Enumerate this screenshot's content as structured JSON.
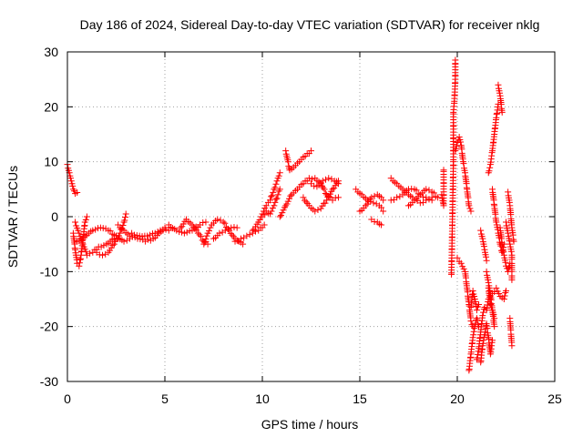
{
  "chart_data": {
    "type": "scatter",
    "title": "Day 186 of 2024, Sidereal Day-to-day VTEC variation (SDTVAR) for receiver nklg",
    "xlabel": "GPS time / hours",
    "ylabel": "SDTVAR / TECUs",
    "xlim": [
      0,
      25
    ],
    "ylim": [
      -30,
      30
    ],
    "xticks": [
      0,
      5,
      10,
      15,
      20,
      25
    ],
    "xtick_labels": [
      "0",
      "5",
      "10",
      "15",
      "20",
      "25"
    ],
    "yticks": [
      -30,
      -20,
      -10,
      0,
      10,
      20,
      30
    ],
    "ytick_labels": [
      "-30",
      "-20",
      "-10",
      "0",
      "10",
      "20",
      "30"
    ],
    "grid": true,
    "marker": "+",
    "color": "#ff0000",
    "series": [
      {
        "name": "SDTVAR",
        "segments": [
          [
            [
              0.0,
              9.5
            ],
            [
              0.1,
              8.0
            ],
            [
              0.2,
              6.5
            ],
            [
              0.3,
              5.0
            ],
            [
              0.4,
              4.2
            ],
            [
              0.5,
              4.4
            ]
          ],
          [
            [
              0.3,
              -3.0
            ],
            [
              0.4,
              -6.0
            ],
            [
              0.5,
              -8.5
            ],
            [
              0.6,
              -9.0
            ],
            [
              0.7,
              -7.0
            ],
            [
              0.8,
              -4.0
            ],
            [
              0.9,
              -1.0
            ],
            [
              1.0,
              0.0
            ]
          ],
          [
            [
              0.4,
              -1.0
            ],
            [
              0.6,
              -3.0
            ],
            [
              0.8,
              -5.0
            ],
            [
              1.0,
              -7.0
            ],
            [
              1.3,
              -6.5
            ],
            [
              1.6,
              -5.5
            ],
            [
              2.0,
              -5.0
            ],
            [
              2.4,
              -4.0
            ]
          ],
          [
            [
              0.5,
              -4.5
            ],
            [
              0.9,
              -3.5
            ],
            [
              1.3,
              -2.5
            ],
            [
              1.7,
              -2.0
            ],
            [
              2.1,
              -2.5
            ],
            [
              2.5,
              -3.5
            ],
            [
              2.9,
              -4.5
            ],
            [
              3.2,
              -4.0
            ]
          ],
          [
            [
              1.5,
              -6.5
            ],
            [
              1.8,
              -7.0
            ],
            [
              2.1,
              -6.5
            ],
            [
              2.4,
              -5.0
            ],
            [
              2.7,
              -3.0
            ],
            [
              2.9,
              -1.0
            ],
            [
              3.0,
              0.5
            ]
          ],
          [
            [
              2.6,
              -1.5
            ],
            [
              2.9,
              -2.5
            ],
            [
              3.2,
              -3.5
            ],
            [
              3.6,
              -4.0
            ],
            [
              4.0,
              -4.5
            ],
            [
              4.4,
              -4.0
            ],
            [
              4.7,
              -3.0
            ],
            [
              5.0,
              -2.0
            ]
          ],
          [
            [
              3.3,
              -3.0
            ],
            [
              3.7,
              -3.5
            ],
            [
              4.1,
              -3.5
            ],
            [
              4.5,
              -3.0
            ],
            [
              4.9,
              -2.5
            ],
            [
              5.2,
              -2.5
            ]
          ],
          [
            [
              5.2,
              -1.5
            ],
            [
              5.6,
              -2.5
            ],
            [
              6.0,
              -3.0
            ],
            [
              6.4,
              -2.5
            ],
            [
              6.8,
              -1.5
            ],
            [
              7.1,
              -1.0
            ]
          ],
          [
            [
              5.8,
              -2.0
            ],
            [
              6.1,
              -0.5
            ],
            [
              6.4,
              -1.5
            ],
            [
              6.7,
              -3.0
            ],
            [
              7.0,
              -4.5
            ],
            [
              7.2,
              -5.0
            ]
          ],
          [
            [
              7.0,
              -5.0
            ],
            [
              7.2,
              -3.0
            ],
            [
              7.4,
              -1.5
            ],
            [
              7.7,
              -0.5
            ],
            [
              8.0,
              -1.0
            ],
            [
              8.3,
              -2.5
            ],
            [
              8.6,
              -4.0
            ],
            [
              9.0,
              -5.0
            ]
          ],
          [
            [
              7.5,
              -4.0
            ],
            [
              7.8,
              -3.0
            ],
            [
              8.1,
              -2.5
            ],
            [
              8.4,
              -2.0
            ],
            [
              8.7,
              -2.0
            ]
          ],
          [
            [
              8.6,
              -4.5
            ],
            [
              8.9,
              -4.0
            ],
            [
              9.2,
              -3.5
            ],
            [
              9.5,
              -3.0
            ],
            [
              9.8,
              -2.5
            ],
            [
              10.1,
              -1.5
            ]
          ],
          [
            [
              9.5,
              -2.5
            ],
            [
              9.8,
              -1.0
            ],
            [
              10.0,
              0.5
            ],
            [
              10.2,
              2.0
            ],
            [
              10.4,
              3.0
            ],
            [
              10.6,
              5.0
            ],
            [
              10.8,
              7.0
            ],
            [
              10.9,
              8.0
            ]
          ],
          [
            [
              10.0,
              0.0
            ],
            [
              10.2,
              1.0
            ],
            [
              10.4,
              0.5
            ],
            [
              10.6,
              2.0
            ],
            [
              10.8,
              4.0
            ],
            [
              10.9,
              5.0
            ]
          ],
          [
            [
              10.9,
              0.0
            ],
            [
              11.2,
              2.0
            ],
            [
              11.5,
              4.0
            ],
            [
              11.8,
              5.0
            ],
            [
              12.1,
              6.0
            ],
            [
              12.4,
              7.0
            ],
            [
              12.7,
              7.0
            ],
            [
              13.0,
              6.0
            ],
            [
              13.3,
              4.0
            ],
            [
              13.6,
              3.0
            ],
            [
              13.9,
              3.5
            ]
          ],
          [
            [
              11.2,
              12.0
            ],
            [
              11.4,
              8.5
            ],
            [
              11.6,
              9.0
            ],
            [
              11.9,
              10.0
            ],
            [
              12.2,
              11.0
            ],
            [
              12.5,
              12.0
            ]
          ],
          [
            [
              12.1,
              3.5
            ],
            [
              12.4,
              2.0
            ],
            [
              12.7,
              1.0
            ],
            [
              13.0,
              1.5
            ],
            [
              13.3,
              3.0
            ],
            [
              13.6,
              5.0
            ],
            [
              13.9,
              6.5
            ]
          ],
          [
            [
              12.5,
              6.0
            ],
            [
              12.8,
              5.5
            ],
            [
              13.1,
              6.5
            ],
            [
              13.4,
              7.0
            ],
            [
              13.7,
              6.5
            ],
            [
              13.9,
              6.0
            ]
          ],
          [
            [
              14.8,
              5.0
            ],
            [
              15.1,
              4.0
            ],
            [
              15.4,
              3.0
            ],
            [
              15.7,
              2.5
            ],
            [
              16.0,
              2.0
            ],
            [
              16.2,
              1.0
            ]
          ],
          [
            [
              15.0,
              1.0
            ],
            [
              15.3,
              2.0
            ],
            [
              15.6,
              3.5
            ],
            [
              15.9,
              4.0
            ],
            [
              16.2,
              3.0
            ]
          ],
          [
            [
              15.6,
              -0.5
            ],
            [
              15.9,
              -1.0
            ],
            [
              16.1,
              -1.5
            ]
          ],
          [
            [
              16.6,
              7.0
            ],
            [
              16.9,
              6.0
            ],
            [
              17.2,
              5.0
            ],
            [
              17.5,
              4.0
            ],
            [
              17.8,
              3.0
            ],
            [
              18.1,
              2.5
            ],
            [
              18.4,
              3.0
            ],
            [
              18.7,
              3.5
            ]
          ],
          [
            [
              16.6,
              3.0
            ],
            [
              16.9,
              3.5
            ],
            [
              17.2,
              4.0
            ],
            [
              17.5,
              5.0
            ],
            [
              17.8,
              5.0
            ],
            [
              18.1,
              4.0
            ],
            [
              18.4,
              3.5
            ],
            [
              18.7,
              3.0
            ]
          ],
          [
            [
              17.5,
              2.0
            ],
            [
              17.8,
              3.0
            ],
            [
              18.1,
              4.0
            ],
            [
              18.4,
              5.0
            ],
            [
              18.7,
              4.5
            ],
            [
              19.0,
              3.5
            ]
          ],
          [
            [
              19.2,
              4.0
            ],
            [
              19.3,
              2.0
            ],
            [
              19.3,
              8.5
            ]
          ],
          [
            [
              19.7,
              -10.5
            ],
            [
              19.8,
              10.0
            ],
            [
              19.8,
              19.0
            ],
            [
              19.85,
              21.0
            ],
            [
              19.9,
              25.0
            ],
            [
              19.9,
              28.5
            ]
          ],
          [
            [
              19.9,
              12.0
            ],
            [
              20.0,
              13.5
            ],
            [
              20.1,
              14.5
            ],
            [
              20.2,
              13.0
            ],
            [
              20.3,
              10.0
            ],
            [
              20.4,
              8.0
            ],
            [
              20.5,
              5.0
            ],
            [
              20.6,
              2.0
            ],
            [
              20.7,
              1.0
            ]
          ],
          [
            [
              20.0,
              -7.5
            ],
            [
              20.2,
              -8.5
            ],
            [
              20.4,
              -10.0
            ],
            [
              20.5,
              -13.0
            ],
            [
              20.6,
              -16.0
            ],
            [
              20.7,
              -19.0
            ],
            [
              20.8,
              -20.0
            ]
          ],
          [
            [
              20.7,
              -16.5
            ],
            [
              20.8,
              -13.5
            ],
            [
              20.9,
              -15.0
            ],
            [
              21.0,
              -17.0
            ],
            [
              21.1,
              -16.0
            ]
          ],
          [
            [
              20.6,
              -28.0
            ],
            [
              20.7,
              -25.0
            ],
            [
              20.8,
              -22.0
            ],
            [
              20.9,
              -20.0
            ],
            [
              21.0,
              -18.5
            ],
            [
              21.1,
              -20.0
            ]
          ],
          [
            [
              21.0,
              -26.0
            ],
            [
              21.1,
              -24.0
            ],
            [
              21.2,
              -21.0
            ],
            [
              21.3,
              -18.0
            ],
            [
              21.4,
              -16.5
            ],
            [
              21.5,
              -17.0
            ],
            [
              21.6,
              -15.0
            ]
          ],
          [
            [
              21.2,
              -26.5
            ],
            [
              21.3,
              -23.5
            ],
            [
              21.4,
              -21.5
            ],
            [
              21.5,
              -19.5
            ],
            [
              21.6,
              -22.0
            ],
            [
              21.7,
              -25.0
            ],
            [
              21.8,
              -22.5
            ]
          ],
          [
            [
              21.2,
              -2.5
            ],
            [
              21.3,
              -4.0
            ],
            [
              21.4,
              -6.0
            ],
            [
              21.5,
              -8.0
            ]
          ],
          [
            [
              21.5,
              -10.0
            ],
            [
              21.6,
              -12.0
            ],
            [
              21.7,
              -14.0
            ],
            [
              21.8,
              -17.0
            ],
            [
              21.9,
              -18.5
            ]
          ],
          [
            [
              21.6,
              -13.0
            ],
            [
              21.7,
              -16.0
            ],
            [
              21.8,
              -17.0
            ],
            [
              21.9,
              -20.0
            ]
          ],
          [
            [
              21.8,
              5.0
            ],
            [
              21.9,
              2.0
            ],
            [
              22.0,
              -1.0
            ],
            [
              22.1,
              -3.0
            ],
            [
              22.2,
              -5.0
            ],
            [
              22.3,
              -6.5
            ],
            [
              22.4,
              -5.0
            ]
          ],
          [
            [
              21.8,
              -14.0
            ],
            [
              22.0,
              -13.0
            ],
            [
              22.2,
              -14.5
            ],
            [
              22.4,
              -15.0
            ],
            [
              22.5,
              -13.5
            ]
          ],
          [
            [
              21.6,
              8.0
            ],
            [
              21.7,
              9.5
            ],
            [
              21.8,
              12.0
            ],
            [
              21.9,
              15.0
            ],
            [
              22.0,
              18.0
            ],
            [
              22.1,
              20.5
            ]
          ],
          [
            [
              22.1,
              24.0
            ],
            [
              22.2,
              22.0
            ],
            [
              22.3,
              19.0
            ]
          ],
          [
            [
              22.2,
              -2.0
            ],
            [
              22.3,
              -5.0
            ],
            [
              22.4,
              -7.0
            ],
            [
              22.5,
              -9.0
            ],
            [
              22.6,
              -10.0
            ],
            [
              22.7,
              -8.5
            ]
          ],
          [
            [
              22.5,
              -1.0
            ],
            [
              22.6,
              -3.0
            ],
            [
              22.7,
              -5.0
            ],
            [
              22.8,
              -7.0
            ],
            [
              22.8,
              -11.5
            ]
          ],
          [
            [
              22.6,
              4.5
            ],
            [
              22.7,
              2.0
            ],
            [
              22.8,
              -2.0
            ],
            [
              22.9,
              -4.5
            ]
          ],
          [
            [
              22.7,
              -18.5
            ],
            [
              22.8,
              -23.5
            ]
          ]
        ]
      }
    ]
  }
}
